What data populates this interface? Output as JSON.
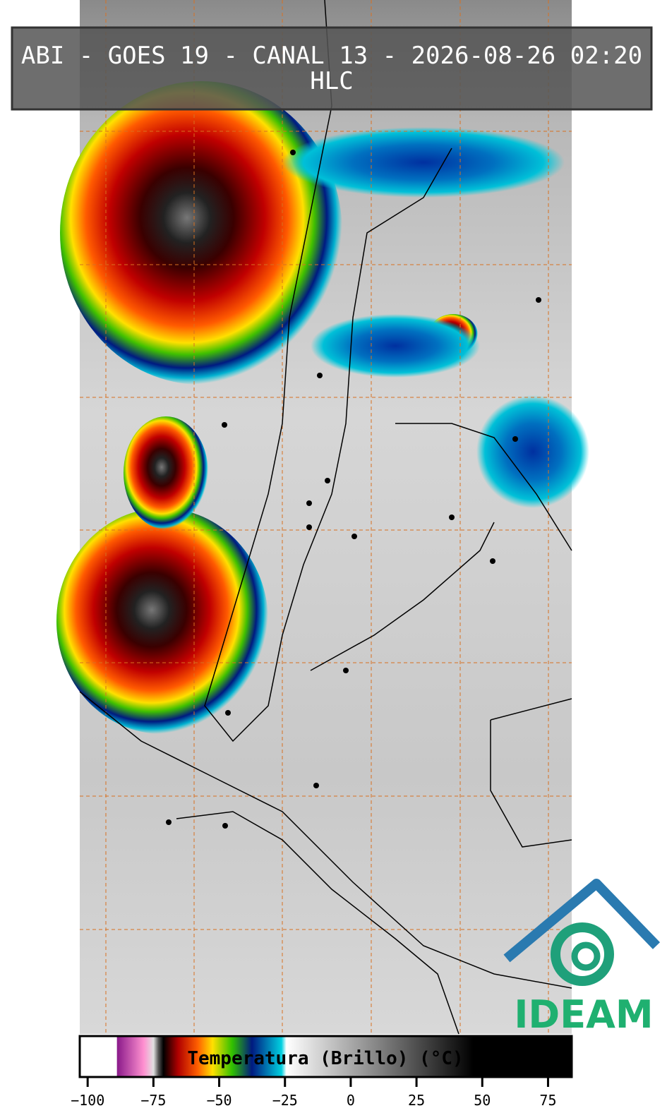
{
  "header": {
    "title": "ABI - GOES 19 - CANAL 13 - 2026-08-26 02:20",
    "subtitle": "HLC"
  },
  "colorbar": {
    "label": "Temperatura (Brillo) (°C)",
    "lim": [
      -103,
      84
    ],
    "ticks": [
      {
        "value": -100,
        "label": "−100"
      },
      {
        "value": -75,
        "label": "−75"
      },
      {
        "value": -50,
        "label": "−50"
      },
      {
        "value": -25,
        "label": "−25"
      },
      0,
      25,
      50,
      75
    ]
  },
  "logo": {
    "text": "IDEAM"
  }
}
